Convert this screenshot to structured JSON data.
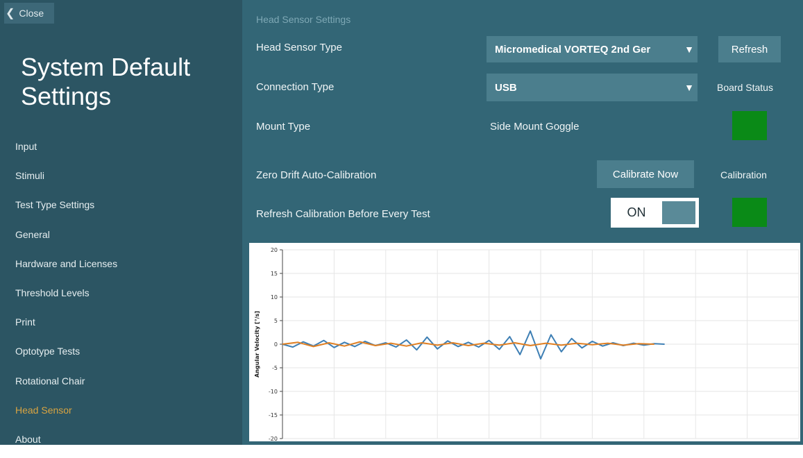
{
  "sidebar": {
    "close_label": "Close",
    "title": "System Default Settings",
    "items": [
      {
        "label": "Input",
        "active": false
      },
      {
        "label": "Stimuli",
        "active": false
      },
      {
        "label": "Test Type Settings",
        "active": false
      },
      {
        "label": "General",
        "active": false
      },
      {
        "label": "Hardware and Licenses",
        "active": false
      },
      {
        "label": "Threshold Levels",
        "active": false
      },
      {
        "label": "Print",
        "active": false
      },
      {
        "label": "Optotype Tests",
        "active": false
      },
      {
        "label": "Rotational Chair",
        "active": false
      },
      {
        "label": "Head Sensor",
        "active": true
      },
      {
        "label": "About",
        "active": false
      }
    ]
  },
  "main": {
    "section_title": "Head Sensor Settings",
    "head_sensor_type_label": "Head Sensor Type",
    "head_sensor_type_value": "Micromedical VORTEQ 2nd Ger",
    "refresh_label": "Refresh",
    "connection_type_label": "Connection Type",
    "connection_type_value": "USB",
    "board_status_label": "Board Status",
    "mount_type_label": "Mount Type",
    "mount_type_value": "Side Mount Goggle",
    "zero_drift_label": "Zero Drift Auto-Calibration",
    "calibrate_now_label": "Calibrate Now",
    "calibration_label": "Calibration",
    "refresh_calibration_label": "Refresh Calibration Before Every Test",
    "toggle_label": "ON",
    "toggle_on": true
  },
  "colors": {
    "sidebar_bg": "#2c5563",
    "main_bg": "#336676",
    "accent_active": "#d9a441",
    "status_ok": "#0a8a17",
    "series_blue": "#3e7fb4",
    "series_orange": "#e07f22"
  },
  "icons": {
    "close": "chevron-left-icon",
    "dropdown": "caret-down-icon"
  },
  "chart_data": {
    "type": "line",
    "title": "",
    "xlabel": "",
    "ylabel": "Angular Velocity [°/s]",
    "ylim": [
      -20,
      20
    ],
    "yticks": [
      20,
      15,
      10,
      5,
      0,
      -5,
      -10,
      -15,
      -20
    ],
    "xlim": [
      0,
      100
    ],
    "grid": true,
    "series": [
      {
        "color": "#3e7fb4",
        "x": [
          0,
          2,
          4,
          6,
          8,
          10,
          12,
          14,
          16,
          18,
          20,
          22,
          24,
          26,
          28,
          30,
          32,
          34,
          36,
          38,
          40,
          42,
          44,
          46,
          48,
          50,
          52,
          54,
          56,
          58,
          60,
          62,
          64,
          66,
          68,
          70,
          72,
          74
        ],
        "values": [
          0,
          -0.6,
          0.5,
          -0.4,
          0.8,
          -0.7,
          0.4,
          -0.5,
          0.6,
          -0.3,
          0.3,
          -0.6,
          0.9,
          -1.2,
          1.5,
          -1.0,
          0.7,
          -0.5,
          0.4,
          -0.6,
          0.8,
          -1.1,
          1.6,
          -2.2,
          2.8,
          -3.1,
          2.0,
          -1.6,
          1.2,
          -0.8,
          0.6,
          -0.4,
          0.3,
          -0.3,
          0.2,
          -0.2,
          0.1,
          0
        ]
      },
      {
        "color": "#e07f22",
        "x": [
          0,
          3,
          6,
          9,
          12,
          15,
          18,
          21,
          24,
          27,
          30,
          33,
          36,
          39,
          42,
          45,
          48,
          51,
          54,
          57,
          60,
          63,
          66,
          69,
          72
        ],
        "values": [
          0,
          0.4,
          -0.5,
          0.3,
          -0.4,
          0.5,
          -0.3,
          0.2,
          -0.4,
          0.3,
          -0.2,
          0.3,
          -0.3,
          0.2,
          -0.2,
          0.3,
          -0.3,
          0.2,
          -0.2,
          0.2,
          -0.1,
          0.2,
          -0.2,
          0.1,
          0
        ]
      }
    ]
  }
}
